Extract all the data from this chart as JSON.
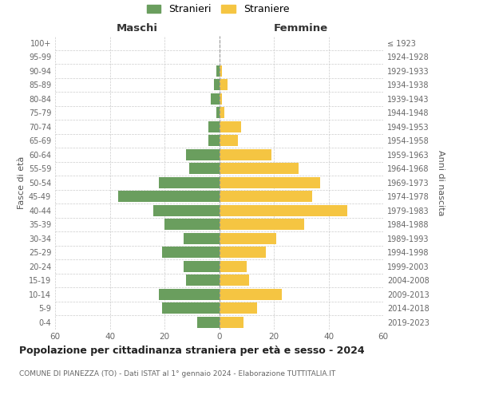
{
  "age_groups": [
    "0-4",
    "5-9",
    "10-14",
    "15-19",
    "20-24",
    "25-29",
    "30-34",
    "35-39",
    "40-44",
    "45-49",
    "50-54",
    "55-59",
    "60-64",
    "65-69",
    "70-74",
    "75-79",
    "80-84",
    "85-89",
    "90-94",
    "95-99",
    "100+"
  ],
  "birth_years": [
    "2019-2023",
    "2014-2018",
    "2009-2013",
    "2004-2008",
    "1999-2003",
    "1994-1998",
    "1989-1993",
    "1984-1988",
    "1979-1983",
    "1974-1978",
    "1969-1973",
    "1964-1968",
    "1959-1963",
    "1954-1958",
    "1949-1953",
    "1944-1948",
    "1939-1943",
    "1934-1938",
    "1929-1933",
    "1924-1928",
    "≤ 1923"
  ],
  "maschi": [
    8,
    21,
    22,
    12,
    13,
    21,
    13,
    20,
    24,
    37,
    22,
    11,
    12,
    4,
    4,
    1,
    3,
    2,
    1,
    0,
    0
  ],
  "femmine": [
    9,
    14,
    23,
    11,
    10,
    17,
    21,
    31,
    47,
    34,
    37,
    29,
    19,
    7,
    8,
    2,
    1,
    3,
    1,
    0,
    0
  ],
  "color_maschi": "#6a9e5e",
  "color_femmine": "#f5c542",
  "title": "Popolazione per cittadinanza straniera per età e sesso - 2024",
  "subtitle": "COMUNE DI PIANEZZA (TO) - Dati ISTAT al 1° gennaio 2024 - Elaborazione TUTTITALIA.IT",
  "xlabel_left": "Maschi",
  "xlabel_right": "Femmine",
  "ylabel_left": "Fasce di età",
  "ylabel_right": "Anni di nascita",
  "xlim": 60,
  "background_color": "#ffffff",
  "grid_color": "#cccccc",
  "legend_stranieri": "Stranieri",
  "legend_straniere": "Straniere"
}
